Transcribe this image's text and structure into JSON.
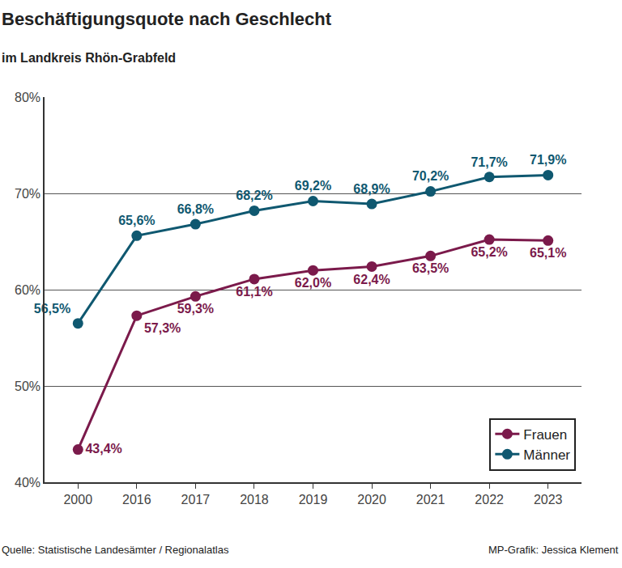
{
  "chart_data": {
    "type": "line",
    "title": "Beschäftigungsquote nach Geschlecht",
    "subtitle": "im Landkreis Rhön-Grabfeld",
    "source": "Quelle: Statistische Landesämter / Regionalatlas",
    "credit": "MP-Grafik: Jessica Klement",
    "categories": [
      "2000",
      "2016",
      "2017",
      "2018",
      "2019",
      "2020",
      "2021",
      "2022",
      "2023"
    ],
    "series": [
      {
        "name": "Frauen",
        "color": "#7b1a4b",
        "values": [
          43.4,
          57.3,
          59.3,
          61.1,
          62.0,
          62.4,
          63.5,
          65.2,
          65.1
        ],
        "value_labels": [
          "43,4%",
          "57,3%",
          "59,3%",
          "61,1%",
          "62,0%",
          "62,4%",
          "63,5%",
          "65,2%",
          "65,1%"
        ]
      },
      {
        "name": "Männer",
        "color": "#0f5870",
        "values": [
          56.5,
          65.6,
          66.8,
          68.2,
          69.2,
          68.9,
          70.2,
          71.7,
          71.9
        ],
        "value_labels": [
          "56,5%",
          "65,6%",
          "66,8%",
          "68,2%",
          "69,2%",
          "68,9%",
          "70,2%",
          "71,7%",
          "71,9%"
        ]
      }
    ],
    "ylim": [
      40,
      80
    ],
    "yticks": [
      {
        "value": 40,
        "label": "40%"
      },
      {
        "value": 50,
        "label": "50%"
      },
      {
        "value": 60,
        "label": "60%"
      },
      {
        "value": 70,
        "label": "70%"
      },
      {
        "value": 80,
        "label": "80%"
      }
    ],
    "grid": true,
    "legend": "lower right",
    "data_labels": true,
    "marker": "circle"
  }
}
